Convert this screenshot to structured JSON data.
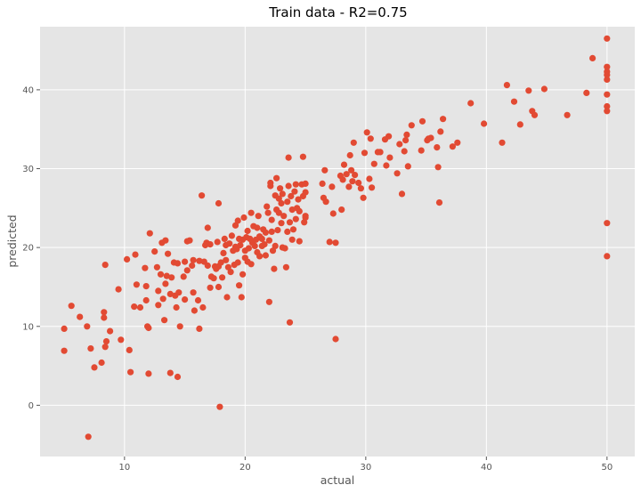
{
  "chart_data": {
    "type": "scatter",
    "title": "Train data  -  R2=0.75",
    "xlabel": "actual",
    "ylabel": "predicted",
    "xlim": [
      3.0,
      52.3
    ],
    "ylim": [
      -6.5,
      48.0
    ],
    "xticks": [
      10,
      20,
      30,
      40,
      50
    ],
    "yticks": [
      0,
      10,
      20,
      30,
      40
    ],
    "grid": true,
    "background": "#e5e5e5",
    "point_color": "#e24a33",
    "points": [
      [
        5.0,
        9.7
      ],
      [
        5.0,
        6.9
      ],
      [
        5.6,
        12.6
      ],
      [
        6.3,
        11.2
      ],
      [
        7.0,
        -4.0
      ],
      [
        6.9,
        10.0
      ],
      [
        7.2,
        7.2
      ],
      [
        7.5,
        4.8
      ],
      [
        8.1,
        5.4
      ],
      [
        8.3,
        11.1
      ],
      [
        8.3,
        11.8
      ],
      [
        8.4,
        7.4
      ],
      [
        8.4,
        17.8
      ],
      [
        8.5,
        8.1
      ],
      [
        8.8,
        9.4
      ],
      [
        9.5,
        14.7
      ],
      [
        9.7,
        8.3
      ],
      [
        10.2,
        18.5
      ],
      [
        10.4,
        7.0
      ],
      [
        10.5,
        4.2
      ],
      [
        10.8,
        12.5
      ],
      [
        10.9,
        19.1
      ],
      [
        11.0,
        15.3
      ],
      [
        11.3,
        12.4
      ],
      [
        11.7,
        17.4
      ],
      [
        11.8,
        13.3
      ],
      [
        11.8,
        15.1
      ],
      [
        11.9,
        10.0
      ],
      [
        12.0,
        4.0
      ],
      [
        12.0,
        9.8
      ],
      [
        12.1,
        21.8
      ],
      [
        12.5,
        19.5
      ],
      [
        12.7,
        17.5
      ],
      [
        12.8,
        14.5
      ],
      [
        12.8,
        12.7
      ],
      [
        13.0,
        16.6
      ],
      [
        13.1,
        20.6
      ],
      [
        13.2,
        13.5
      ],
      [
        13.3,
        10.8
      ],
      [
        13.4,
        20.9
      ],
      [
        13.4,
        15.4
      ],
      [
        13.5,
        16.4
      ],
      [
        13.6,
        19.2
      ],
      [
        13.8,
        14.1
      ],
      [
        13.8,
        4.1
      ],
      [
        13.9,
        16.2
      ],
      [
        14.1,
        18.1
      ],
      [
        14.2,
        13.9
      ],
      [
        14.3,
        12.4
      ],
      [
        14.4,
        18.0
      ],
      [
        14.4,
        3.6
      ],
      [
        14.5,
        14.3
      ],
      [
        14.6,
        10.0
      ],
      [
        14.9,
        16.3
      ],
      [
        15.0,
        13.4
      ],
      [
        15.0,
        18.2
      ],
      [
        15.2,
        20.8
      ],
      [
        15.2,
        17.1
      ],
      [
        15.4,
        20.9
      ],
      [
        15.6,
        17.7
      ],
      [
        15.7,
        18.4
      ],
      [
        15.7,
        14.3
      ],
      [
        15.8,
        12.0
      ],
      [
        16.1,
        13.3
      ],
      [
        16.2,
        18.3
      ],
      [
        16.2,
        9.7
      ],
      [
        16.4,
        26.6
      ],
      [
        16.5,
        12.4
      ],
      [
        16.6,
        18.2
      ],
      [
        16.7,
        20.3
      ],
      [
        16.8,
        20.6
      ],
      [
        16.9,
        22.5
      ],
      [
        16.9,
        17.7
      ],
      [
        17.1,
        14.9
      ],
      [
        17.1,
        20.4
      ],
      [
        17.2,
        16.3
      ],
      [
        17.4,
        16.1
      ],
      [
        17.5,
        17.6
      ],
      [
        17.6,
        17.3
      ],
      [
        17.7,
        20.7
      ],
      [
        17.8,
        17.6
      ],
      [
        17.8,
        15.0
      ],
      [
        17.8,
        25.6
      ],
      [
        17.9,
        -0.2
      ],
      [
        18.0,
        18.1
      ],
      [
        18.1,
        16.2
      ],
      [
        18.2,
        19.3
      ],
      [
        18.3,
        21.1
      ],
      [
        18.4,
        18.4
      ],
      [
        18.4,
        20.3
      ],
      [
        18.5,
        13.7
      ],
      [
        18.6,
        17.5
      ],
      [
        18.7,
        20.5
      ],
      [
        18.8,
        16.9
      ],
      [
        18.9,
        21.5
      ],
      [
        19.0,
        19.6
      ],
      [
        19.1,
        17.8
      ],
      [
        19.2,
        20.1
      ],
      [
        19.2,
        22.8
      ],
      [
        19.3,
        19.8
      ],
      [
        19.4,
        23.4
      ],
      [
        19.4,
        18.1
      ],
      [
        19.5,
        21.1
      ],
      [
        19.5,
        15.2
      ],
      [
        19.6,
        20.3
      ],
      [
        19.7,
        13.7
      ],
      [
        19.8,
        21.0
      ],
      [
        19.8,
        16.6
      ],
      [
        19.9,
        23.8
      ],
      [
        20.0,
        19.6
      ],
      [
        20.0,
        18.7
      ],
      [
        20.1,
        21.3
      ],
      [
        20.2,
        18.2
      ],
      [
        20.2,
        22.1
      ],
      [
        20.3,
        19.9
      ],
      [
        20.4,
        21.1
      ],
      [
        20.5,
        24.4
      ],
      [
        20.5,
        17.9
      ],
      [
        20.6,
        20.6
      ],
      [
        20.7,
        22.7
      ],
      [
        20.8,
        20.2
      ],
      [
        20.9,
        21.0
      ],
      [
        21.0,
        19.4
      ],
      [
        21.0,
        22.5
      ],
      [
        21.1,
        24.0
      ],
      [
        21.2,
        21.4
      ],
      [
        21.2,
        18.9
      ],
      [
        21.4,
        20.2
      ],
      [
        21.4,
        21.1
      ],
      [
        21.5,
        22.3
      ],
      [
        21.6,
        20.4
      ],
      [
        21.7,
        21.9
      ],
      [
        21.7,
        19.0
      ],
      [
        21.8,
        25.2
      ],
      [
        21.9,
        24.4
      ],
      [
        22.0,
        13.1
      ],
      [
        22.0,
        20.9
      ],
      [
        22.1,
        27.8
      ],
      [
        22.1,
        28.2
      ],
      [
        22.2,
        23.5
      ],
      [
        22.2,
        22.0
      ],
      [
        22.3,
        19.6
      ],
      [
        22.4,
        17.3
      ],
      [
        22.5,
        26.6
      ],
      [
        22.5,
        20.2
      ],
      [
        22.6,
        24.8
      ],
      [
        22.6,
        28.8
      ],
      [
        22.7,
        22.2
      ],
      [
        22.8,
        24.4
      ],
      [
        22.8,
        26.2
      ],
      [
        22.9,
        27.5
      ],
      [
        23.0,
        25.6
      ],
      [
        23.0,
        23.1
      ],
      [
        23.1,
        20.0
      ],
      [
        23.1,
        26.8
      ],
      [
        23.2,
        24.0
      ],
      [
        23.3,
        19.9
      ],
      [
        23.4,
        17.5
      ],
      [
        23.5,
        22.0
      ],
      [
        23.5,
        25.8
      ],
      [
        23.6,
        27.8
      ],
      [
        23.6,
        31.4
      ],
      [
        23.7,
        23.2
      ],
      [
        23.7,
        10.5
      ],
      [
        23.8,
        26.5
      ],
      [
        23.9,
        24.8
      ],
      [
        23.9,
        21.0
      ],
      [
        24.0,
        22.3
      ],
      [
        24.1,
        27.1
      ],
      [
        24.2,
        23.6
      ],
      [
        24.2,
        28.0
      ],
      [
        24.3,
        25.0
      ],
      [
        24.4,
        26.1
      ],
      [
        24.5,
        20.8
      ],
      [
        24.5,
        24.6
      ],
      [
        24.7,
        28.0
      ],
      [
        24.8,
        26.5
      ],
      [
        24.8,
        31.5
      ],
      [
        24.9,
        23.2
      ],
      [
        25.0,
        24.0
      ],
      [
        25.0,
        27.0
      ],
      [
        25.0,
        28.1
      ],
      [
        25.0,
        23.8
      ],
      [
        26.4,
        28.1
      ],
      [
        26.5,
        26.3
      ],
      [
        26.6,
        29.8
      ],
      [
        26.7,
        25.8
      ],
      [
        27.0,
        20.7
      ],
      [
        27.2,
        27.7
      ],
      [
        27.3,
        24.3
      ],
      [
        27.5,
        8.4
      ],
      [
        27.5,
        20.6
      ],
      [
        27.9,
        29.1
      ],
      [
        28.0,
        24.8
      ],
      [
        28.1,
        28.6
      ],
      [
        28.2,
        30.5
      ],
      [
        28.4,
        29.3
      ],
      [
        28.6,
        27.7
      ],
      [
        28.7,
        31.7
      ],
      [
        28.8,
        29.8
      ],
      [
        28.9,
        28.4
      ],
      [
        29.0,
        33.3
      ],
      [
        29.1,
        29.2
      ],
      [
        29.4,
        28.2
      ],
      [
        29.6,
        27.5
      ],
      [
        29.8,
        26.3
      ],
      [
        29.9,
        32.0
      ],
      [
        30.1,
        34.6
      ],
      [
        30.3,
        28.7
      ],
      [
        30.4,
        33.8
      ],
      [
        30.5,
        27.6
      ],
      [
        30.7,
        30.6
      ],
      [
        31.0,
        32.1
      ],
      [
        31.2,
        32.1
      ],
      [
        31.6,
        33.7
      ],
      [
        31.7,
        30.4
      ],
      [
        31.9,
        34.1
      ],
      [
        32.0,
        31.4
      ],
      [
        32.6,
        29.4
      ],
      [
        32.8,
        33.1
      ],
      [
        33.0,
        26.8
      ],
      [
        33.2,
        32.2
      ],
      [
        33.3,
        33.6
      ],
      [
        33.4,
        34.3
      ],
      [
        33.5,
        30.3
      ],
      [
        33.8,
        35.5
      ],
      [
        34.6,
        32.3
      ],
      [
        34.7,
        36.0
      ],
      [
        35.1,
        33.6
      ],
      [
        35.2,
        33.8
      ],
      [
        35.4,
        33.9
      ],
      [
        35.9,
        32.7
      ],
      [
        36.0,
        30.2
      ],
      [
        36.1,
        25.7
      ],
      [
        36.2,
        34.7
      ],
      [
        36.4,
        36.3
      ],
      [
        37.2,
        32.8
      ],
      [
        37.6,
        33.3
      ],
      [
        38.7,
        38.3
      ],
      [
        39.8,
        35.7
      ],
      [
        41.3,
        33.3
      ],
      [
        41.7,
        40.6
      ],
      [
        42.3,
        38.5
      ],
      [
        42.8,
        35.6
      ],
      [
        43.5,
        39.9
      ],
      [
        43.8,
        37.3
      ],
      [
        44.0,
        36.8
      ],
      [
        44.8,
        40.1
      ],
      [
        46.7,
        36.8
      ],
      [
        48.3,
        39.6
      ],
      [
        48.8,
        44.0
      ],
      [
        50.0,
        46.5
      ],
      [
        50.0,
        42.9
      ],
      [
        50.0,
        42.3
      ],
      [
        50.0,
        41.9
      ],
      [
        50.0,
        41.3
      ],
      [
        50.0,
        39.4
      ],
      [
        50.0,
        37.9
      ],
      [
        50.0,
        37.3
      ],
      [
        50.0,
        23.1
      ],
      [
        50.0,
        18.9
      ]
    ]
  }
}
